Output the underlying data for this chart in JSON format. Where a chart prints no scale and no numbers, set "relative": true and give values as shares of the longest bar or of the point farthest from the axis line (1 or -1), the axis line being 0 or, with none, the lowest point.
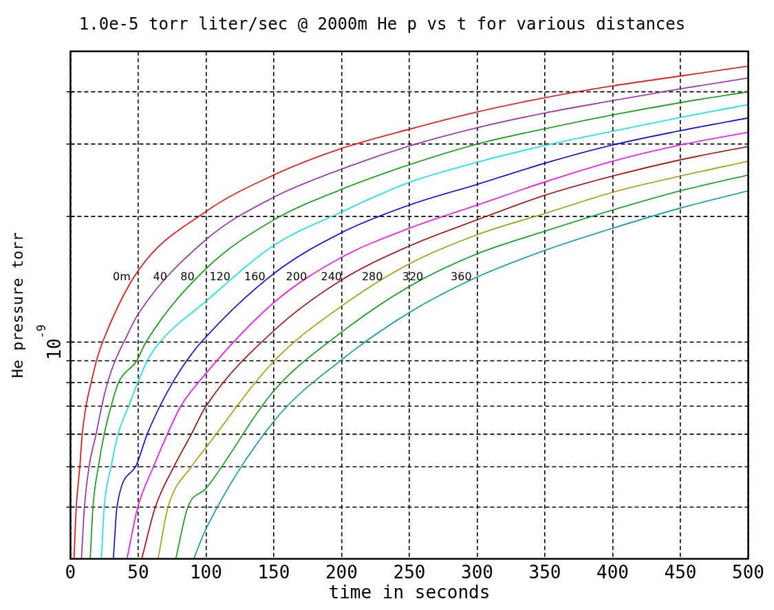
{
  "chart_data": {
    "type": "line",
    "title": "1.0e-5 torr liter/sec @ 2000m He p vs t for various distances",
    "xlabel": "time in seconds",
    "ylabel": "He pressure torr",
    "annotations": [
      "10$^{-9}$"
    ],
    "relative": true,
    "grid": "x",
    "line_style": "solid",
    "marker": "none",
    "xlim": [
      0,
      500
    ],
    "xticks": [
      0,
      50,
      100,
      150,
      200,
      250,
      300,
      350,
      400,
      450,
      500
    ],
    "ref_lines": [
      {
        "axis": "y",
        "value": 0.105,
        "line_style": "dashed"
      },
      {
        "axis": "y",
        "value": 0.187,
        "line_style": "dashed"
      },
      {
        "axis": "y",
        "value": 0.253,
        "line_style": "dashed"
      },
      {
        "axis": "y",
        "value": 0.31,
        "line_style": "dashed"
      },
      {
        "axis": "y",
        "value": 0.358,
        "line_style": "dashed"
      },
      {
        "axis": "y",
        "value": 0.402,
        "line_style": "dashed"
      },
      {
        "axis": "y",
        "value": 0.44,
        "line_style": "dashed"
      },
      {
        "axis": "y",
        "value": 0.695,
        "line_style": "dashed"
      },
      {
        "axis": "y",
        "value": 0.842,
        "line_style": "dashed"
      },
      {
        "axis": "y",
        "value": 0.948,
        "line_style": "dashed"
      }
    ],
    "series": [
      {
        "name": "0m",
        "color": "#ff0000",
        "x": [
          2.6,
          4.3,
          6.9,
          8.7,
          11.5,
          15.3,
          19.2,
          23.7,
          50,
          100,
          150,
          200,
          250,
          300,
          350,
          400,
          450,
          500
        ],
        "values": [
          0,
          0.105,
          0.187,
          0.253,
          0.31,
          0.358,
          0.402,
          0.44,
          0.585,
          0.705,
          0.779,
          0.833,
          0.872,
          0.907,
          0.936,
          0.96,
          0.98,
          1
        ]
      },
      {
        "name": "40",
        "color": "#a020b0",
        "x": [
          8.1,
          10.3,
          13.7,
          18.9,
          23.1,
          27.4,
          32.9,
          39.4,
          50,
          100,
          150,
          200,
          250,
          300,
          350,
          400,
          450,
          500
        ],
        "values": [
          0,
          0.105,
          0.187,
          0.253,
          0.31,
          0.358,
          0.402,
          0.44,
          0.497,
          0.648,
          0.734,
          0.791,
          0.838,
          0.875,
          0.905,
          0.93,
          0.954,
          0.976
        ]
      },
      {
        "name": "80",
        "color": "#00a000",
        "x": [
          14.6,
          16.6,
          20.6,
          24.9,
          30,
          35.5,
          48.9,
          55.7,
          100,
          150,
          200,
          250,
          300,
          350,
          400,
          450,
          500
        ],
        "values": [
          0,
          0.105,
          0.187,
          0.253,
          0.31,
          0.358,
          0.402,
          0.44,
          0.589,
          0.688,
          0.75,
          0.8,
          0.842,
          0.873,
          0.901,
          0.926,
          0.948
        ]
      },
      {
        "name": "120",
        "color": "#00e8e8",
        "x": [
          22.8,
          24.9,
          30,
          35.1,
          42.9,
          49.7,
          56.6,
          66,
          100,
          150,
          200,
          250,
          300,
          350,
          400,
          450,
          500
        ],
        "values": [
          0,
          0.105,
          0.187,
          0.253,
          0.31,
          0.358,
          0.402,
          0.44,
          0.523,
          0.636,
          0.704,
          0.764,
          0.805,
          0.839,
          0.868,
          0.896,
          0.922
        ]
      },
      {
        "name": "160",
        "color": "#0000ff",
        "x": [
          31.7,
          34.3,
          48,
          56.6,
          66,
          75.4,
          85.7,
          96.5,
          150,
          200,
          250,
          300,
          350,
          400,
          450,
          500
        ],
        "values": [
          0,
          0.105,
          0.187,
          0.253,
          0.31,
          0.358,
          0.402,
          0.44,
          0.579,
          0.662,
          0.718,
          0.76,
          0.803,
          0.84,
          0.869,
          0.895
        ]
      },
      {
        "name": "200",
        "color": "#ff00ff",
        "x": [
          41.7,
          49.7,
          61.2,
          71.5,
          81.4,
          94.3,
          150,
          200,
          250,
          300,
          350,
          400,
          450,
          500
        ],
        "values": [
          0,
          0.105,
          0.187,
          0.253,
          0.31,
          0.358,
          0.52,
          0.612,
          0.671,
          0.718,
          0.765,
          0.807,
          0.84,
          0.866
        ]
      },
      {
        "name": "240",
        "color": "#b00000",
        "x": [
          52.6,
          62.6,
          76.3,
          89.2,
          100,
          150,
          200,
          250,
          300,
          350,
          400,
          450,
          500
        ],
        "values": [
          0,
          0.105,
          0.187,
          0.253,
          0.31,
          0.463,
          0.566,
          0.635,
          0.688,
          0.738,
          0.777,
          0.81,
          0.837
        ]
      },
      {
        "name": "280",
        "color": "#a0a000",
        "x": [
          64.6,
          72,
          89.2,
          100,
          150,
          200,
          250,
          300,
          350,
          400,
          450,
          500
        ],
        "values": [
          0,
          0.105,
          0.187,
          0.226,
          0.401,
          0.513,
          0.599,
          0.658,
          0.701,
          0.744,
          0.777,
          0.807
        ]
      },
      {
        "name": "320",
        "color": "#00a010",
        "x": [
          77.7,
          86.6,
          100,
          150,
          200,
          250,
          300,
          350,
          400,
          450,
          500
        ],
        "values": [
          0,
          0.105,
          0.143,
          0.341,
          0.46,
          0.553,
          0.619,
          0.665,
          0.708,
          0.747,
          0.779
        ]
      },
      {
        "name": "360",
        "color": "#00a0a0",
        "x": [
          90.9,
          100,
          150,
          200,
          250,
          300,
          350,
          400,
          450,
          500
        ],
        "values": [
          0,
          0.061,
          0.279,
          0.404,
          0.5,
          0.572,
          0.626,
          0.671,
          0.712,
          0.747
        ]
      }
    ]
  }
}
